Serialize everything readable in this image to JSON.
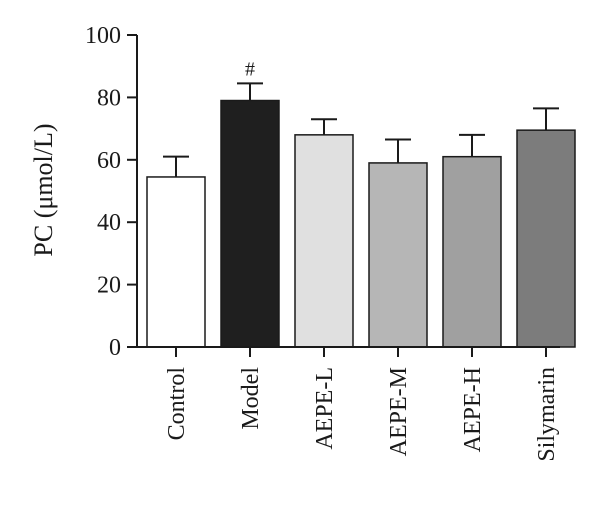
{
  "chart_data": {
    "type": "bar",
    "ylabel": "PC (μmol/L)",
    "ylim": [
      0,
      100
    ],
    "yticks": [
      0,
      20,
      40,
      60,
      80,
      100
    ],
    "categories": [
      "Control",
      "Model",
      "AEPE-L",
      "AEPE-M",
      "AEPE-H",
      "Silymarin"
    ],
    "values": [
      54.5,
      79,
      68,
      59,
      61,
      69.5
    ],
    "errors": [
      6.5,
      5.5,
      5,
      7.5,
      7,
      7
    ],
    "bar_colors": [
      "#ffffff",
      "#1f1f1f",
      "#e0e0e0",
      "#b6b6b6",
      "#a0a0a0",
      "#7c7c7c"
    ],
    "annotations": [
      {
        "category": "Model",
        "text": "#"
      }
    ]
  }
}
